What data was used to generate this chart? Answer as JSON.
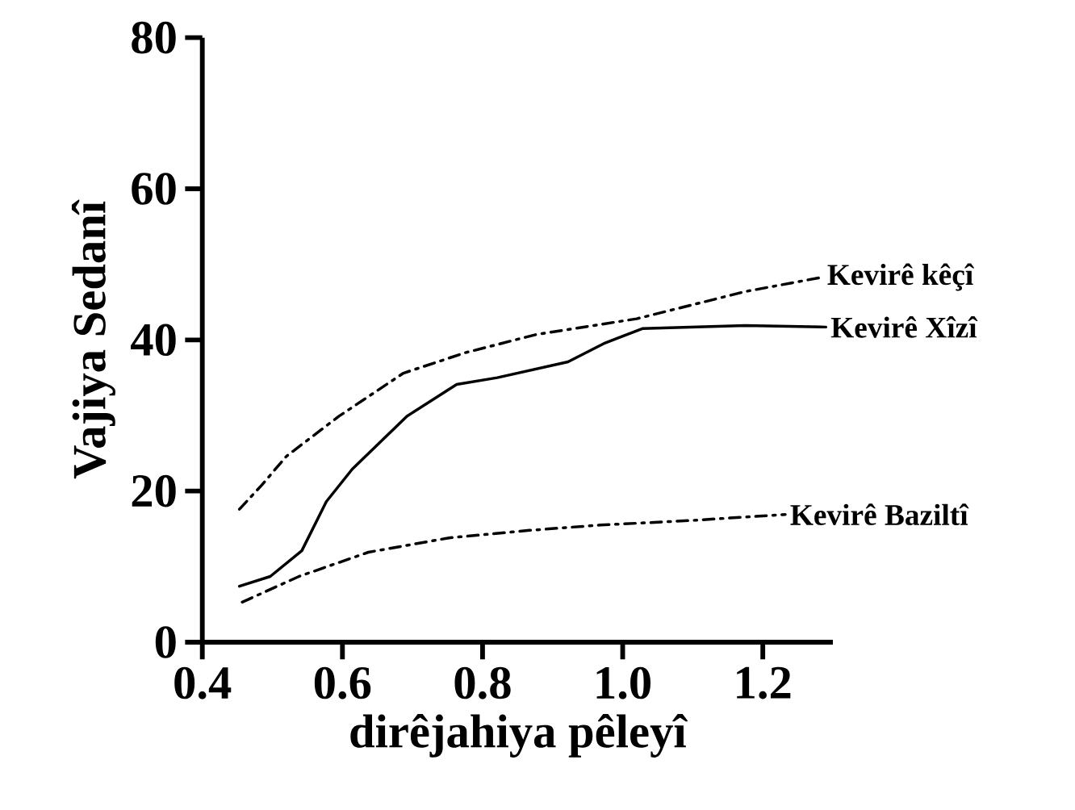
{
  "chart_data": {
    "type": "line",
    "xlabel": "dirêjahiya pêleyî",
    "ylabel": "Vajiya Sedanî",
    "xlim": [
      0.4,
      1.3
    ],
    "ylim": [
      0,
      80
    ],
    "xticks": [
      0.4,
      0.6,
      0.8,
      {
        "value": 1.0,
        "label": "1.0"
      },
      1.2
    ],
    "yticks": [
      0,
      20,
      40,
      60,
      80
    ],
    "grid": false,
    "legend": false,
    "marker": "none",
    "series": [
      {
        "name": "Kevirê kêçî",
        "color": "#000000",
        "line_style": "dashed",
        "x": [
          0.453,
          0.485,
          0.52,
          0.595,
          0.687,
          0.775,
          0.876,
          1.02,
          1.175,
          1.285
        ],
        "values": [
          17.6,
          20.8,
          24.6,
          29.9,
          35.6,
          38.3,
          40.7,
          42.8,
          46.4,
          48.3
        ]
      },
      {
        "name": "Kevirê Xîzî",
        "color": "#000000",
        "line_style": "solid",
        "x": [
          0.453,
          0.497,
          0.542,
          0.577,
          0.614,
          0.692,
          0.763,
          0.821,
          0.922,
          0.975,
          1.028,
          1.175,
          1.29
        ],
        "values": [
          7.4,
          8.7,
          12.1,
          18.6,
          22.9,
          29.9,
          34.1,
          35.0,
          37.1,
          39.6,
          41.5,
          41.9,
          41.7
        ]
      },
      {
        "name": "Kevirê Baziltî",
        "color": "#000000",
        "line_style": "dashed",
        "x": [
          0.457,
          0.538,
          0.637,
          0.752,
          0.867,
          0.968,
          1.097,
          1.232
        ],
        "values": [
          5.3,
          8.7,
          11.9,
          13.8,
          14.8,
          15.5,
          16.1,
          16.9
        ]
      }
    ]
  }
}
